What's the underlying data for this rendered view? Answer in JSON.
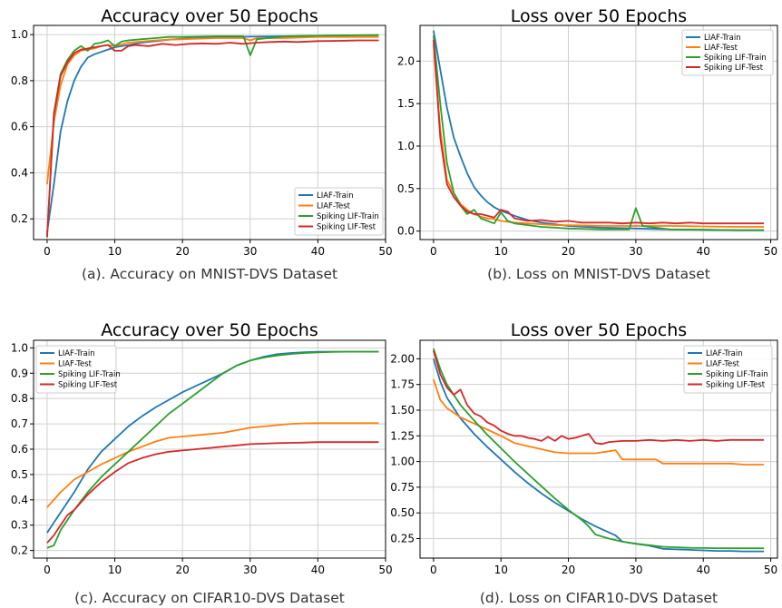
{
  "colors": {
    "LIAF-Train": "#1f77b4",
    "LIAF-Test": "#ff7f0e",
    "Spiking LIF-Train": "#2ca02c",
    "Spiking LIF-Test": "#d62728"
  },
  "chart_data": [
    {
      "type": "line",
      "title": "Accuracy over 50 Epochs",
      "caption": "(a). Accuracy on MNIST-DVS Dataset",
      "xlim": [
        -2,
        50
      ],
      "ylim": [
        0.11,
        1.04
      ],
      "xticks": [
        0,
        10,
        20,
        30,
        40,
        50
      ],
      "yticks": [
        0.2,
        0.4,
        0.6,
        0.8,
        1.0
      ],
      "ytick_labels": [
        "0.2",
        "0.4",
        "0.6",
        "0.8",
        "1.0"
      ],
      "grid": true,
      "legend_position": "lower-right",
      "series": [
        {
          "name": "LIAF-Train",
          "x": [
            0,
            1,
            2,
            3,
            4,
            5,
            6,
            7,
            8,
            9,
            10,
            12,
            14,
            16,
            18,
            20,
            25,
            30,
            35,
            40,
            45,
            49
          ],
          "y": [
            0.14,
            0.35,
            0.58,
            0.71,
            0.8,
            0.86,
            0.9,
            0.915,
            0.925,
            0.935,
            0.945,
            0.955,
            0.965,
            0.972,
            0.978,
            0.982,
            0.988,
            0.991,
            0.993,
            0.995,
            0.997,
            0.998
          ]
        },
        {
          "name": "LIAF-Test",
          "x": [
            0,
            1,
            2,
            3,
            4,
            5,
            6,
            7,
            8,
            9,
            10,
            12,
            14,
            16,
            18,
            20,
            25,
            29,
            30,
            31,
            35,
            40,
            45,
            49
          ],
          "y": [
            0.35,
            0.62,
            0.78,
            0.87,
            0.91,
            0.93,
            0.935,
            0.94,
            0.95,
            0.955,
            0.95,
            0.965,
            0.97,
            0.975,
            0.978,
            0.98,
            0.985,
            0.985,
            0.975,
            0.985,
            0.985,
            0.99,
            0.99,
            0.99
          ]
        },
        {
          "name": "Spiking LIF-Train",
          "x": [
            0,
            1,
            2,
            3,
            4,
            5,
            6,
            7,
            8,
            9,
            10,
            11,
            12,
            14,
            16,
            18,
            20,
            25,
            29,
            30,
            31,
            35,
            40,
            45,
            49
          ],
          "y": [
            0.12,
            0.66,
            0.83,
            0.89,
            0.93,
            0.95,
            0.93,
            0.96,
            0.965,
            0.975,
            0.95,
            0.97,
            0.975,
            0.98,
            0.985,
            0.99,
            0.99,
            0.993,
            0.993,
            0.91,
            0.98,
            0.992,
            0.995,
            0.997,
            0.998
          ]
        },
        {
          "name": "Spiking LIF-Test",
          "x": [
            0,
            1,
            2,
            3,
            4,
            5,
            6,
            7,
            8,
            9,
            10,
            11,
            12,
            13,
            15,
            17,
            19,
            21,
            23,
            25,
            27,
            29,
            31,
            33,
            35,
            37,
            40,
            43,
            46,
            49
          ],
          "y": [
            0.12,
            0.65,
            0.82,
            0.88,
            0.92,
            0.935,
            0.94,
            0.945,
            0.95,
            0.955,
            0.93,
            0.93,
            0.95,
            0.955,
            0.95,
            0.96,
            0.955,
            0.96,
            0.962,
            0.96,
            0.965,
            0.96,
            0.965,
            0.968,
            0.97,
            0.968,
            0.972,
            0.973,
            0.975,
            0.975
          ]
        }
      ]
    },
    {
      "type": "line",
      "title": "Loss over 50 Epochs",
      "caption": "(b). Loss on MNIST-DVS Dataset",
      "xlim": [
        -2,
        51
      ],
      "ylim": [
        -0.1,
        2.42
      ],
      "xticks": [
        0,
        10,
        20,
        30,
        40,
        50
      ],
      "yticks": [
        0.0,
        0.5,
        1.0,
        1.5,
        2.0
      ],
      "ytick_labels": [
        "0.0",
        "0.5",
        "1.0",
        "1.5",
        "2.0"
      ],
      "grid": true,
      "legend_position": "top-right",
      "series": [
        {
          "name": "LIAF-Train",
          "x": [
            0,
            1,
            2,
            3,
            4,
            5,
            6,
            7,
            8,
            9,
            10,
            12,
            14,
            16,
            18,
            20,
            25,
            30,
            35,
            40,
            45,
            49
          ],
          "y": [
            2.36,
            1.9,
            1.45,
            1.1,
            0.88,
            0.68,
            0.52,
            0.42,
            0.34,
            0.28,
            0.24,
            0.18,
            0.13,
            0.1,
            0.08,
            0.06,
            0.04,
            0.03,
            0.02,
            0.015,
            0.01,
            0.01
          ]
        },
        {
          "name": "LIAF-Test",
          "x": [
            0,
            1,
            2,
            3,
            4,
            5,
            6,
            7,
            8,
            9,
            10,
            12,
            14,
            16,
            18,
            20,
            25,
            30,
            35,
            40,
            45,
            49
          ],
          "y": [
            2.2,
            1.2,
            0.6,
            0.45,
            0.32,
            0.25,
            0.2,
            0.17,
            0.15,
            0.14,
            0.12,
            0.1,
            0.09,
            0.08,
            0.07,
            0.07,
            0.06,
            0.06,
            0.06,
            0.055,
            0.05,
            0.05
          ]
        },
        {
          "name": "Spiking LIF-Train",
          "x": [
            0,
            1,
            2,
            3,
            4,
            5,
            6,
            7,
            8,
            9,
            10,
            11,
            12,
            14,
            16,
            18,
            20,
            25,
            29,
            30,
            31,
            35,
            40,
            45,
            49
          ],
          "y": [
            2.3,
            1.5,
            0.8,
            0.45,
            0.3,
            0.2,
            0.25,
            0.15,
            0.12,
            0.09,
            0.22,
            0.12,
            0.09,
            0.07,
            0.05,
            0.04,
            0.03,
            0.02,
            0.02,
            0.27,
            0.06,
            0.02,
            0.015,
            0.01,
            0.01
          ]
        },
        {
          "name": "Spiking LIF-Test",
          "x": [
            0,
            1,
            2,
            3,
            4,
            5,
            6,
            7,
            8,
            9,
            10,
            11,
            12,
            14,
            16,
            18,
            20,
            22,
            24,
            26,
            28,
            30,
            32,
            34,
            36,
            38,
            40,
            43,
            46,
            49
          ],
          "y": [
            2.25,
            1.1,
            0.55,
            0.4,
            0.3,
            0.23,
            0.2,
            0.2,
            0.18,
            0.16,
            0.25,
            0.23,
            0.15,
            0.12,
            0.13,
            0.11,
            0.12,
            0.1,
            0.1,
            0.1,
            0.09,
            0.1,
            0.09,
            0.1,
            0.09,
            0.1,
            0.09,
            0.09,
            0.09,
            0.09
          ]
        }
      ]
    },
    {
      "type": "line",
      "title": "Accuracy over 50 Epochs",
      "caption": "(c). Accuracy on CIFAR10-DVS Dataset",
      "xlim": [
        -2,
        50
      ],
      "ylim": [
        0.17,
        1.03
      ],
      "xticks": [
        0,
        10,
        20,
        30,
        40,
        50
      ],
      "yticks": [
        0.2,
        0.3,
        0.4,
        0.5,
        0.6,
        0.7,
        0.8,
        0.9,
        1.0
      ],
      "ytick_labels": [
        "0.2",
        "0.3",
        "0.4",
        "0.5",
        "0.6",
        "0.7",
        "0.8",
        "0.9",
        "1.0"
      ],
      "grid": true,
      "legend_position": "top-left",
      "series": [
        {
          "name": "LIAF-Train",
          "x": [
            0,
            2,
            4,
            6,
            8,
            10,
            12,
            14,
            16,
            18,
            20,
            22,
            24,
            26,
            28,
            30,
            32,
            34,
            36,
            38,
            40,
            42,
            44,
            46,
            49
          ],
          "y": [
            0.27,
            0.35,
            0.43,
            0.52,
            0.59,
            0.64,
            0.69,
            0.73,
            0.765,
            0.795,
            0.825,
            0.85,
            0.875,
            0.9,
            0.93,
            0.95,
            0.965,
            0.975,
            0.98,
            0.983,
            0.985,
            0.985,
            0.985,
            0.985,
            0.985
          ]
        },
        {
          "name": "LIAF-Test",
          "x": [
            0,
            2,
            4,
            6,
            8,
            10,
            12,
            14,
            16,
            18,
            20,
            22,
            24,
            26,
            28,
            30,
            32,
            34,
            36,
            38,
            40,
            42,
            44,
            46,
            49
          ],
          "y": [
            0.37,
            0.43,
            0.48,
            0.51,
            0.54,
            0.565,
            0.59,
            0.61,
            0.63,
            0.645,
            0.65,
            0.655,
            0.66,
            0.665,
            0.675,
            0.685,
            0.69,
            0.695,
            0.7,
            0.702,
            0.703,
            0.703,
            0.703,
            0.703,
            0.703
          ]
        },
        {
          "name": "Spiking LIF-Train",
          "x": [
            0,
            1,
            2,
            4,
            6,
            8,
            10,
            12,
            14,
            16,
            18,
            20,
            22,
            24,
            26,
            28,
            30,
            32,
            34,
            36,
            38,
            40,
            42,
            44,
            46,
            49
          ],
          "y": [
            0.21,
            0.22,
            0.28,
            0.36,
            0.43,
            0.49,
            0.54,
            0.59,
            0.64,
            0.69,
            0.74,
            0.78,
            0.82,
            0.86,
            0.9,
            0.93,
            0.95,
            0.962,
            0.97,
            0.976,
            0.98,
            0.982,
            0.984,
            0.985,
            0.985,
            0.985
          ]
        },
        {
          "name": "Spiking LIF-Test",
          "x": [
            0,
            1,
            2,
            3,
            4,
            6,
            8,
            10,
            12,
            14,
            16,
            18,
            20,
            22,
            24,
            26,
            28,
            30,
            32,
            34,
            36,
            38,
            40,
            42,
            44,
            46,
            49
          ],
          "y": [
            0.23,
            0.26,
            0.3,
            0.34,
            0.36,
            0.42,
            0.47,
            0.51,
            0.545,
            0.565,
            0.58,
            0.59,
            0.595,
            0.6,
            0.605,
            0.61,
            0.615,
            0.62,
            0.622,
            0.624,
            0.625,
            0.626,
            0.628,
            0.628,
            0.628,
            0.628,
            0.628
          ]
        }
      ]
    },
    {
      "type": "line",
      "title": "Loss over 50 Epochs",
      "caption": "(d). Loss on CIFAR10-DVS Dataset",
      "xlim": [
        -2,
        51
      ],
      "ylim": [
        0.06,
        2.18
      ],
      "xticks": [
        0,
        10,
        20,
        30,
        40,
        50
      ],
      "yticks": [
        0.25,
        0.5,
        0.75,
        1.0,
        1.25,
        1.5,
        1.75,
        2.0
      ],
      "ytick_labels": [
        "0.25",
        "0.50",
        "0.75",
        "1.00",
        "1.25",
        "1.50",
        "1.75",
        "2.00"
      ],
      "grid": true,
      "legend_position": "top-right",
      "series": [
        {
          "name": "LIAF-Train",
          "x": [
            0,
            1,
            2,
            4,
            6,
            8,
            10,
            12,
            14,
            16,
            18,
            20,
            22,
            24,
            26,
            27,
            28,
            30,
            32,
            34,
            36,
            38,
            40,
            42,
            44,
            46,
            49
          ],
          "y": [
            2.0,
            1.78,
            1.62,
            1.42,
            1.27,
            1.14,
            1.02,
            0.9,
            0.79,
            0.69,
            0.6,
            0.52,
            0.44,
            0.37,
            0.31,
            0.28,
            0.22,
            0.2,
            0.18,
            0.15,
            0.145,
            0.14,
            0.135,
            0.13,
            0.13,
            0.125,
            0.125
          ]
        },
        {
          "name": "LIAF-Test",
          "x": [
            0,
            1,
            2,
            4,
            6,
            8,
            10,
            12,
            14,
            16,
            18,
            20,
            22,
            24,
            26,
            27,
            28,
            30,
            32,
            33,
            34,
            36,
            38,
            40,
            42,
            44,
            46,
            49
          ],
          "y": [
            1.8,
            1.6,
            1.52,
            1.43,
            1.37,
            1.31,
            1.25,
            1.18,
            1.15,
            1.12,
            1.09,
            1.08,
            1.08,
            1.08,
            1.1,
            1.11,
            1.02,
            1.02,
            1.02,
            1.02,
            0.98,
            0.98,
            0.98,
            0.98,
            0.98,
            0.98,
            0.97,
            0.97
          ]
        },
        {
          "name": "Spiking LIF-Train",
          "x": [
            0,
            1,
            2,
            4,
            6,
            8,
            10,
            12,
            14,
            16,
            18,
            20,
            22,
            23,
            24,
            26,
            28,
            30,
            32,
            34,
            36,
            38,
            40,
            42,
            44,
            46,
            49
          ],
          "y": [
            2.1,
            1.9,
            1.75,
            1.55,
            1.4,
            1.26,
            1.13,
            1.0,
            0.88,
            0.76,
            0.64,
            0.53,
            0.43,
            0.37,
            0.29,
            0.25,
            0.22,
            0.2,
            0.185,
            0.17,
            0.165,
            0.16,
            0.158,
            0.156,
            0.155,
            0.155,
            0.155
          ]
        },
        {
          "name": "Spiking LIF-Test",
          "x": [
            0,
            1,
            2,
            3,
            4,
            5,
            6,
            7,
            8,
            9,
            10,
            11,
            12,
            13,
            14,
            15,
            16,
            17,
            18,
            19,
            20,
            21,
            22,
            23,
            24,
            25,
            26,
            28,
            30,
            32,
            34,
            36,
            38,
            40,
            42,
            44,
            46,
            49
          ],
          "y": [
            2.08,
            1.85,
            1.72,
            1.65,
            1.7,
            1.55,
            1.47,
            1.44,
            1.38,
            1.35,
            1.3,
            1.27,
            1.25,
            1.25,
            1.23,
            1.22,
            1.2,
            1.24,
            1.2,
            1.25,
            1.22,
            1.23,
            1.25,
            1.27,
            1.18,
            1.17,
            1.19,
            1.2,
            1.2,
            1.21,
            1.2,
            1.21,
            1.2,
            1.21,
            1.2,
            1.21,
            1.21,
            1.21
          ]
        }
      ]
    }
  ]
}
